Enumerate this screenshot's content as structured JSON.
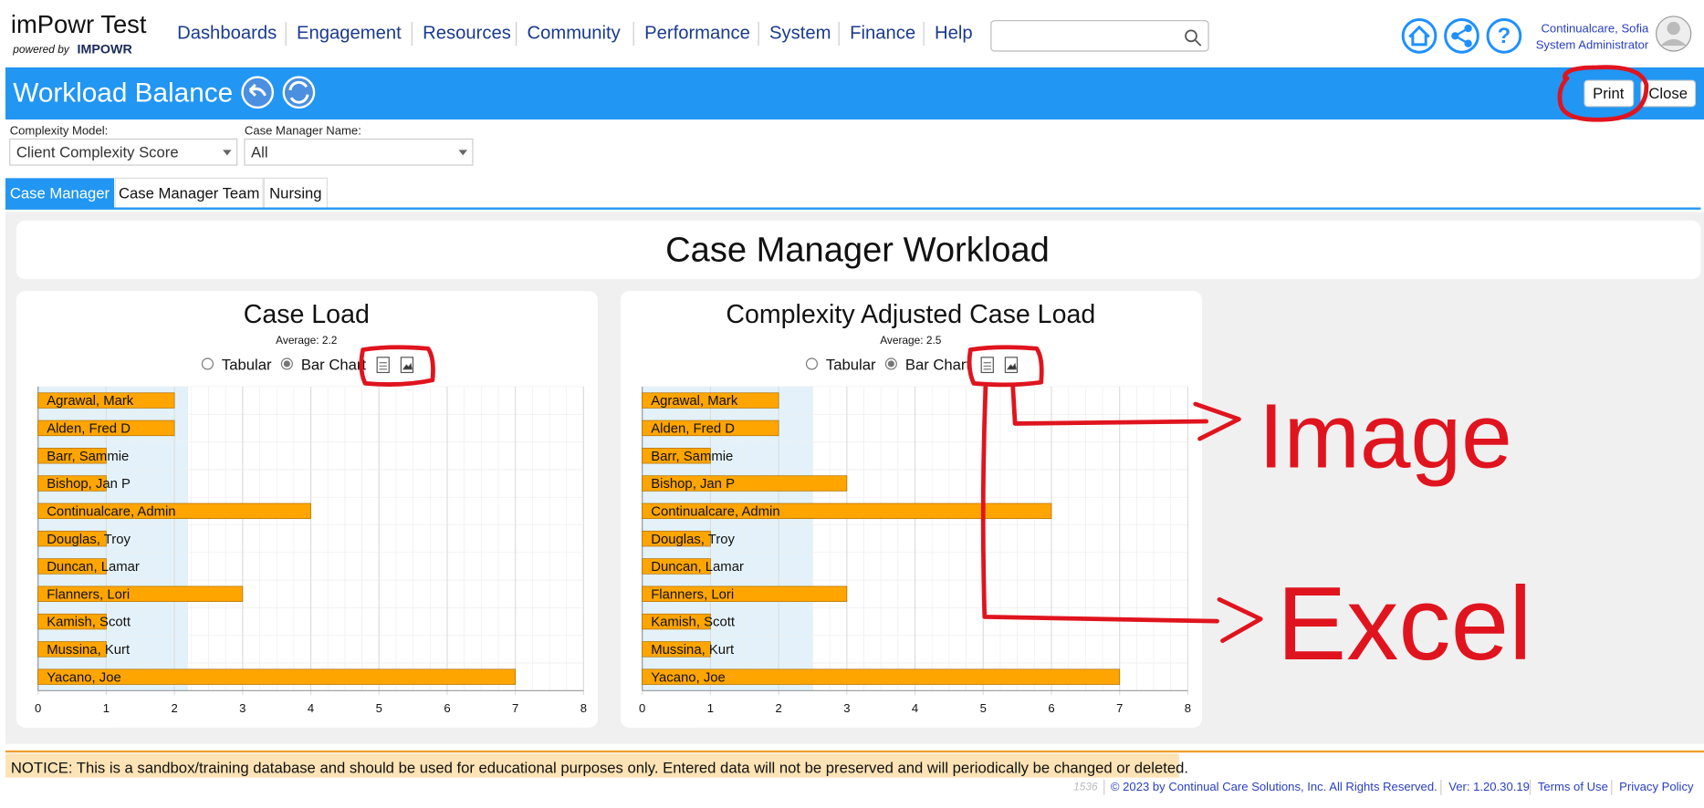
{
  "header": {
    "app_title": "imPowr Test",
    "powered_by": "powered by",
    "brand": "IMPOWR",
    "nav": [
      "Dashboards",
      "Engagement",
      "Resources",
      "Community",
      "Performance",
      "System",
      "Finance",
      "Help"
    ],
    "user_name": "Continualcare, Sofia",
    "user_role": "System Administrator"
  },
  "toolbar": {
    "title": "Workload Balance",
    "buttons": [
      "Print",
      "Close"
    ]
  },
  "filters": [
    {
      "label": "Complexity Model:",
      "value": "Client Complexity Score"
    },
    {
      "label": "Case Manager Name:",
      "value": "All"
    }
  ],
  "tabs": [
    "Case Manager",
    "Case Manager Team",
    "Nursing"
  ],
  "panel_title": "Case Manager Workload",
  "chart_data": [
    {
      "type": "bar",
      "title": "Case Load",
      "average_label": "Average: 2.2",
      "average": 2.2,
      "options": [
        "Tabular",
        "Bar Chart"
      ],
      "categories": [
        "Agrawal, Mark",
        "Alden, Fred D",
        "Barr, Sammie",
        "Bishop, Jan P",
        "Continualcare, Admin",
        "Douglas, Troy",
        "Duncan, Lamar",
        "Flanners, Lori",
        "Kamish, Scott",
        "Mussina, Kurt",
        "Yacano, Joe"
      ],
      "values": [
        2,
        2,
        1,
        1,
        4,
        1,
        1,
        3,
        1,
        1,
        7
      ],
      "color": "#ffa500",
      "xlim": [
        0,
        8
      ],
      "xticks": [
        0,
        1,
        2,
        3,
        4,
        5,
        6,
        7,
        8
      ]
    },
    {
      "type": "bar",
      "title": "Complexity Adjusted Case Load",
      "average_label": "Average: 2.5",
      "average": 2.5,
      "options": [
        "Tabular",
        "Bar Chart"
      ],
      "categories": [
        "Agrawal, Mark",
        "Alden, Fred D",
        "Barr, Sammie",
        "Bishop, Jan P",
        "Continualcare, Admin",
        "Douglas, Troy",
        "Duncan, Lamar",
        "Flanners, Lori",
        "Kamish, Scott",
        "Mussina, Kurt",
        "Yacano, Joe"
      ],
      "values": [
        2,
        2,
        1,
        3,
        6,
        1,
        1,
        3,
        1,
        1,
        7
      ],
      "color": "#ffa500",
      "xlim": [
        0,
        8
      ],
      "xticks": [
        0,
        1,
        2,
        3,
        4,
        5,
        6,
        7,
        8
      ]
    }
  ],
  "notice": "NOTICE: This is a sandbox/training database and should be used for educational purposes only. Entered data will not be preserved and will periodically be changed or deleted.",
  "footer": {
    "build": "1536",
    "copyright": "© 2023 by Continual Care Solutions, Inc. All Rights Reserved.",
    "version": "Ver: 1.20.30.19",
    "links": [
      "Terms of Use",
      "Privacy Policy"
    ]
  },
  "annotations": [
    "Image",
    "Excel"
  ]
}
